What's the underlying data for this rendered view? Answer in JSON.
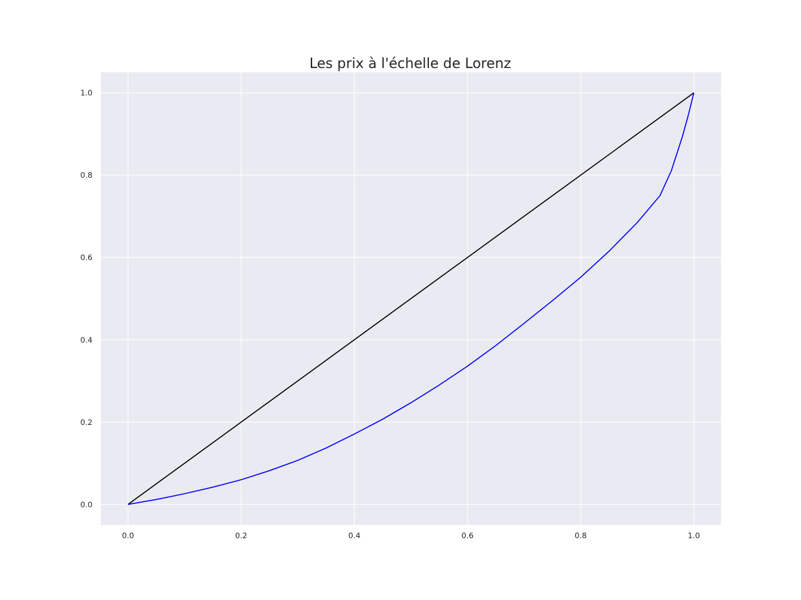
{
  "chart_data": {
    "type": "line",
    "title": "Les prix à l'échelle de Lorenz",
    "xlabel": "",
    "ylabel": "",
    "xlim": [
      -0.048,
      1.048
    ],
    "ylim": [
      -0.05,
      1.05
    ],
    "xticks": [
      0.0,
      0.2,
      0.4,
      0.6,
      0.8,
      1.0
    ],
    "xtick_labels": [
      "0.0",
      "0.2",
      "0.4",
      "0.6",
      "0.8",
      "1.0"
    ],
    "yticks": [
      0.0,
      0.2,
      0.4,
      0.6,
      0.8,
      1.0
    ],
    "ytick_labels": [
      "0.0",
      "0.2",
      "0.4",
      "0.6",
      "0.8",
      "1.0"
    ],
    "grid": true,
    "legend": "none",
    "colors": {
      "plot_background": "#eaeaf2",
      "grid": "#ffffff",
      "equality_line": "#000000",
      "lorenz_curve": "#0000ff"
    },
    "series": [
      {
        "color": "#000000",
        "x": [
          0.0,
          1.0
        ],
        "y": [
          0.0,
          1.0
        ]
      },
      {
        "color": "#0000ff",
        "x": [
          0.0,
          0.05,
          0.1,
          0.15,
          0.2,
          0.25,
          0.3,
          0.35,
          0.4,
          0.45,
          0.5,
          0.55,
          0.6,
          0.65,
          0.7,
          0.75,
          0.8,
          0.85,
          0.9,
          0.94,
          0.96,
          0.98,
          0.99,
          1.0
        ],
        "y": [
          0.0,
          0.012,
          0.026,
          0.042,
          0.06,
          0.082,
          0.107,
          0.137,
          0.171,
          0.207,
          0.247,
          0.29,
          0.336,
          0.386,
          0.44,
          0.495,
          0.552,
          0.615,
          0.685,
          0.75,
          0.81,
          0.895,
          0.945,
          1.0
        ]
      }
    ]
  }
}
